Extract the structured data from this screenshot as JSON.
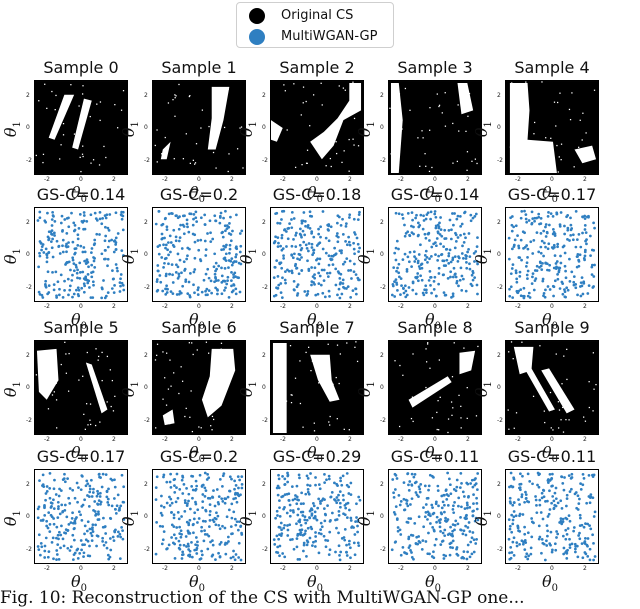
{
  "legend": {
    "items": [
      {
        "label": "Original CS",
        "color": "#000000"
      },
      {
        "label": "MultiWGAN-GP",
        "color": "#2f7fc1"
      }
    ]
  },
  "axis_labels": {
    "y": "θ",
    "y_sub": "1",
    "x": "θ",
    "x_sub": "0"
  },
  "ticks": {
    "x": [
      "-2",
      "0",
      "2"
    ],
    "y": [
      "2",
      "0",
      "-2"
    ]
  },
  "rows": [
    {
      "kind": "original",
      "titles": [
        "Sample 0",
        "Sample 1",
        "Sample 2",
        "Sample 3",
        "Sample 4"
      ]
    },
    {
      "kind": "generated",
      "titles": [
        "GS-C=0.14",
        "GS-C=0.2",
        "GS-C=0.18",
        "GS-C=0.14",
        "GS-C=0.17"
      ]
    },
    {
      "kind": "original",
      "titles": [
        "Sample 5",
        "Sample 6",
        "Sample 7",
        "Sample 8",
        "Sample 9"
      ]
    },
    {
      "kind": "generated",
      "titles": [
        "GS-C=0.17",
        "GS-C=0.2",
        "GS-C=0.29",
        "GS-C=0.11",
        "GS-C=0.11"
      ]
    }
  ],
  "caption": "Fig. 10: Reconstruction of the CS with MultiWGAN-GP one..."
}
